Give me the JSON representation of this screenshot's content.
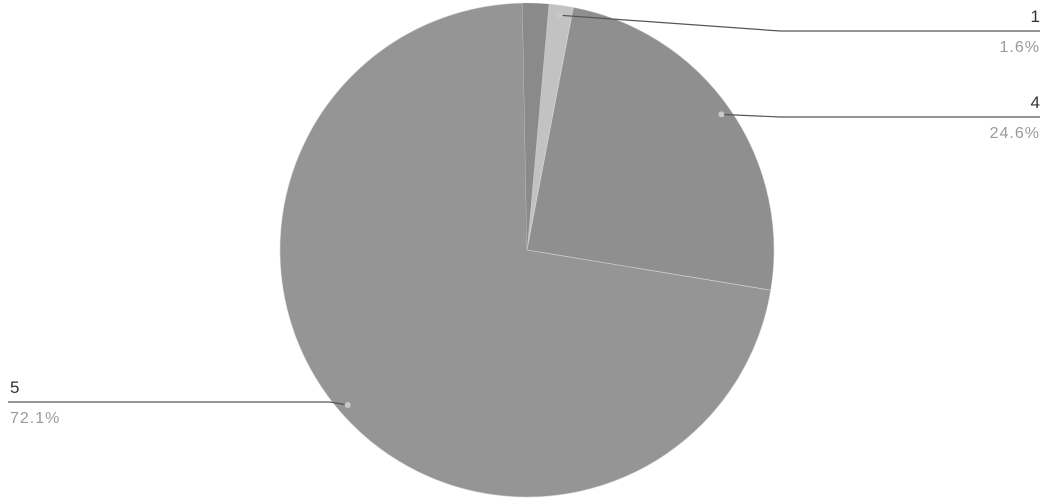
{
  "chart_data": {
    "type": "pie",
    "slices": [
      {
        "label": "1",
        "value": 1.6,
        "percent_label": "1.6%",
        "color": "#c2c2c2"
      },
      {
        "label": "4",
        "value": 24.6,
        "percent_label": "24.6%",
        "color": "#8f8f8f"
      },
      {
        "label": "5",
        "value": 72.1,
        "percent_label": "72.1%",
        "color": "#959595"
      }
    ],
    "hidden_remainder_color": "#8a8a8a",
    "title": "",
    "legend": "none"
  }
}
